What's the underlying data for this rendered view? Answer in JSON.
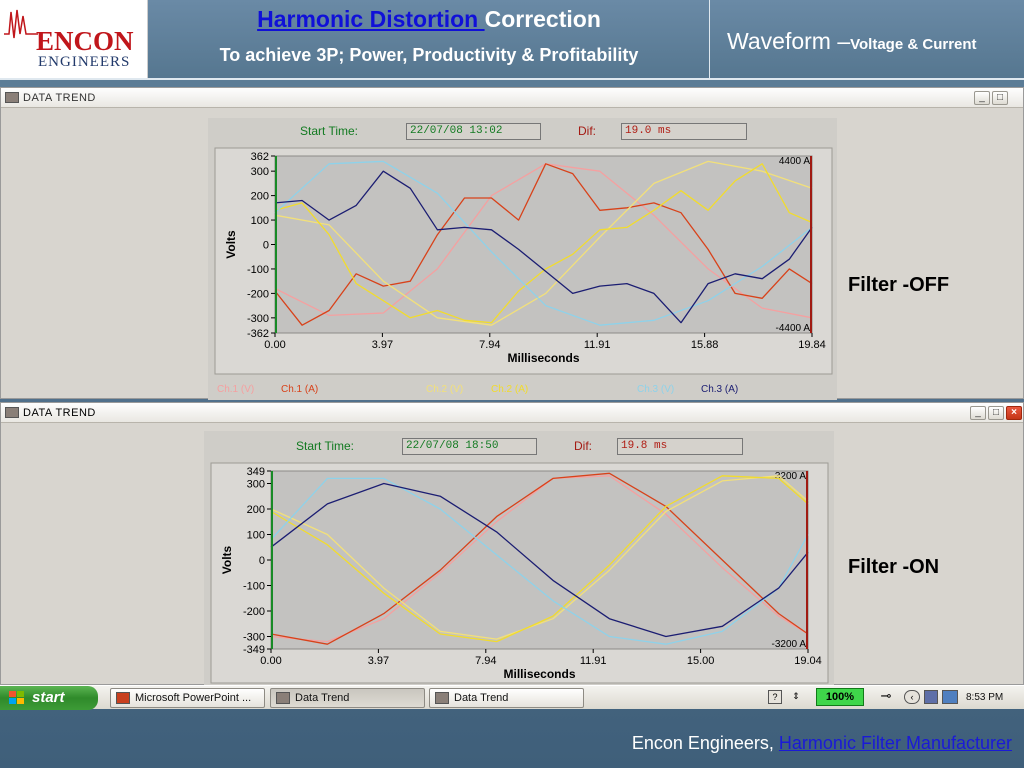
{
  "header": {
    "logo_encon": "ENCON",
    "logo_engineers": "ENGINEERS",
    "title_link": "Harmonic Distortion ",
    "title_rest": "Correction",
    "subtitle": "To achieve 3P; Power, Productivity & Profitability",
    "waveform_main": "Waveform –",
    "waveform_small": "Voltage & Current"
  },
  "windows": [
    {
      "title": "DATA TREND",
      "start_label": "Start Time:",
      "start_value": "22/07/08 13:02",
      "dif_label": "Dif:",
      "dif_value": "19.0 ms",
      "filter_label": "Filter -OFF",
      "chart_data": {
        "type": "line",
        "xlabel": "Milliseconds",
        "ylabel": "Volts",
        "xlim": [
          0,
          19.84
        ],
        "ylim": [
          -362,
          362
        ],
        "xticks": [
          "0.00",
          "3.97",
          "7.94",
          "11.91",
          "15.88",
          "19.84"
        ],
        "yticks": [
          "362",
          "300",
          "200",
          "100",
          "0",
          "-100",
          "-200",
          "-300",
          "-362"
        ],
        "current_max_label": "4400 A",
        "current_min_label": "-4400 A",
        "legend": [
          "Ch.1 (V)",
          "Ch.1 (A)",
          "Ch.2 (V)",
          "Ch.2 (A)",
          "Ch.3 (V)",
          "Ch.3 (A)"
        ],
        "series": [
          {
            "name": "Ch.1 (V)",
            "color": "#f5a0a0",
            "x": [
              0,
              2,
              4,
              6,
              8,
              10,
              12,
              14,
              16,
              18,
              19.84
            ],
            "values": [
              -180,
              -290,
              -280,
              -100,
              200,
              330,
              300,
              120,
              -100,
              -260,
              -300
            ]
          },
          {
            "name": "Ch.1 (A)",
            "color": "#d8421a",
            "x": [
              0,
              1,
              2,
              3,
              4,
              5,
              6,
              7,
              8,
              9,
              10,
              11,
              12,
              13,
              14,
              15,
              16,
              17,
              18,
              19,
              19.84
            ],
            "values": [
              -190,
              -330,
              -270,
              -120,
              -170,
              -150,
              40,
              190,
              190,
              100,
              330,
              290,
              140,
              150,
              170,
              130,
              -20,
              -200,
              -220,
              -100,
              -160
            ]
          },
          {
            "name": "Ch.2 (V)",
            "color": "#f2e07a",
            "x": [
              0,
              2,
              4,
              6,
              8,
              10,
              12,
              14,
              16,
              18,
              19.84
            ],
            "values": [
              120,
              80,
              -150,
              -300,
              -330,
              -200,
              30,
              250,
              340,
              300,
              230
            ]
          },
          {
            "name": "Ch.2 (A)",
            "color": "#f2dc2c",
            "x": [
              0,
              1,
              2,
              3,
              4,
              5,
              6,
              7,
              8,
              9,
              10,
              11,
              12,
              13,
              14,
              15,
              16,
              17,
              18,
              19,
              19.84
            ],
            "values": [
              140,
              170,
              40,
              -160,
              -230,
              -300,
              -270,
              -310,
              -320,
              -190,
              -100,
              -40,
              60,
              70,
              140,
              220,
              140,
              260,
              330,
              130,
              90
            ]
          },
          {
            "name": "Ch.3 (V)",
            "color": "#8ed2ea",
            "x": [
              0,
              2,
              4,
              6,
              8,
              10,
              12,
              14,
              16,
              18,
              19.84
            ],
            "values": [
              130,
              330,
              340,
              210,
              -30,
              -250,
              -330,
              -310,
              -230,
              -90,
              70
            ]
          },
          {
            "name": "Ch.3 (A)",
            "color": "#1b1d72",
            "x": [
              0,
              1,
              2,
              3,
              4,
              5,
              6,
              7,
              8,
              9,
              10,
              11,
              12,
              13,
              14,
              15,
              16,
              17,
              18,
              19,
              19.84
            ],
            "values": [
              170,
              180,
              100,
              160,
              300,
              230,
              60,
              70,
              60,
              -20,
              -110,
              -200,
              -170,
              -160,
              -200,
              -320,
              -160,
              -120,
              -140,
              -60,
              70
            ]
          }
        ]
      }
    },
    {
      "title": "DATA TREND",
      "start_label": "Start Time:",
      "start_value": "22/07/08 18:50",
      "dif_label": "Dif:",
      "dif_value": "19.8 ms",
      "filter_label": "Filter -ON",
      "chart_data": {
        "type": "line",
        "xlabel": "Milliseconds",
        "ylabel": "Volts",
        "xlim": [
          0,
          19.04
        ],
        "ylim": [
          -349,
          349
        ],
        "xticks": [
          "0.00",
          "3.97",
          "7.94",
          "11.91",
          "15.00",
          "19.04"
        ],
        "yticks": [
          "349",
          "300",
          "200",
          "100",
          "0",
          "-100",
          "-200",
          "-300",
          "-349"
        ],
        "current_max_label": "3200 A",
        "current_min_label": "-3200 A",
        "series": [
          {
            "name": "Ch.1 (V)",
            "color": "#f5a0a0",
            "x": [
              0,
              2,
              4,
              6,
              8,
              10,
              12,
              14,
              16,
              18,
              19.04
            ],
            "values": [
              -300,
              -320,
              -230,
              -50,
              150,
              320,
              330,
              180,
              -30,
              -220,
              -290
            ]
          },
          {
            "name": "Ch.1 (A)",
            "color": "#d8421a",
            "x": [
              0,
              2,
              4,
              6,
              8,
              10,
              12,
              14,
              16,
              18,
              19.04
            ],
            "values": [
              -290,
              -330,
              -210,
              -40,
              170,
              320,
              340,
              210,
              0,
              -210,
              -290
            ]
          },
          {
            "name": "Ch.2 (V)",
            "color": "#f2e07a",
            "x": [
              0,
              2,
              4,
              6,
              8,
              10,
              12,
              14,
              16,
              18,
              19.04
            ],
            "values": [
              200,
              100,
              -110,
              -280,
              -310,
              -230,
              -40,
              190,
              310,
              330,
              230
            ]
          },
          {
            "name": "Ch.2 (A)",
            "color": "#f2dc2c",
            "x": [
              0,
              2,
              4,
              6,
              8,
              10,
              12,
              14,
              16,
              18,
              19.04
            ],
            "values": [
              190,
              60,
              -130,
              -290,
              -320,
              -220,
              -20,
              210,
              330,
              320,
              220
            ]
          },
          {
            "name": "Ch.3 (V)",
            "color": "#8ed2ea",
            "x": [
              0,
              2,
              4,
              6,
              8,
              10,
              12,
              14,
              16,
              18,
              19.04
            ],
            "values": [
              80,
              320,
              320,
              200,
              20,
              -160,
              -300,
              -330,
              -280,
              -110,
              100
            ]
          },
          {
            "name": "Ch.3 (A)",
            "color": "#1b1d72",
            "x": [
              0,
              2,
              4,
              6,
              8,
              10,
              12,
              14,
              16,
              18,
              19.04
            ],
            "values": [
              50,
              220,
              300,
              250,
              110,
              -80,
              -230,
              -300,
              -260,
              -110,
              30
            ]
          }
        ]
      }
    }
  ],
  "taskbar": {
    "start_label": "start",
    "items": [
      "Microsoft PowerPoint ...",
      "Data Trend",
      "Data Trend"
    ],
    "zoom": "100%",
    "clock": "8:53 PM"
  },
  "footer": {
    "text": "Encon Engineers, ",
    "link": "Harmonic Filter Manufacturer"
  },
  "colors": {
    "ch1_v": "#f5a0a0",
    "ch1_a": "#d8421a",
    "ch2_v": "#f2e07a",
    "ch2_a": "#f2dc2c",
    "ch3_v": "#8ed2ea",
    "ch3_a": "#1b1d72"
  }
}
